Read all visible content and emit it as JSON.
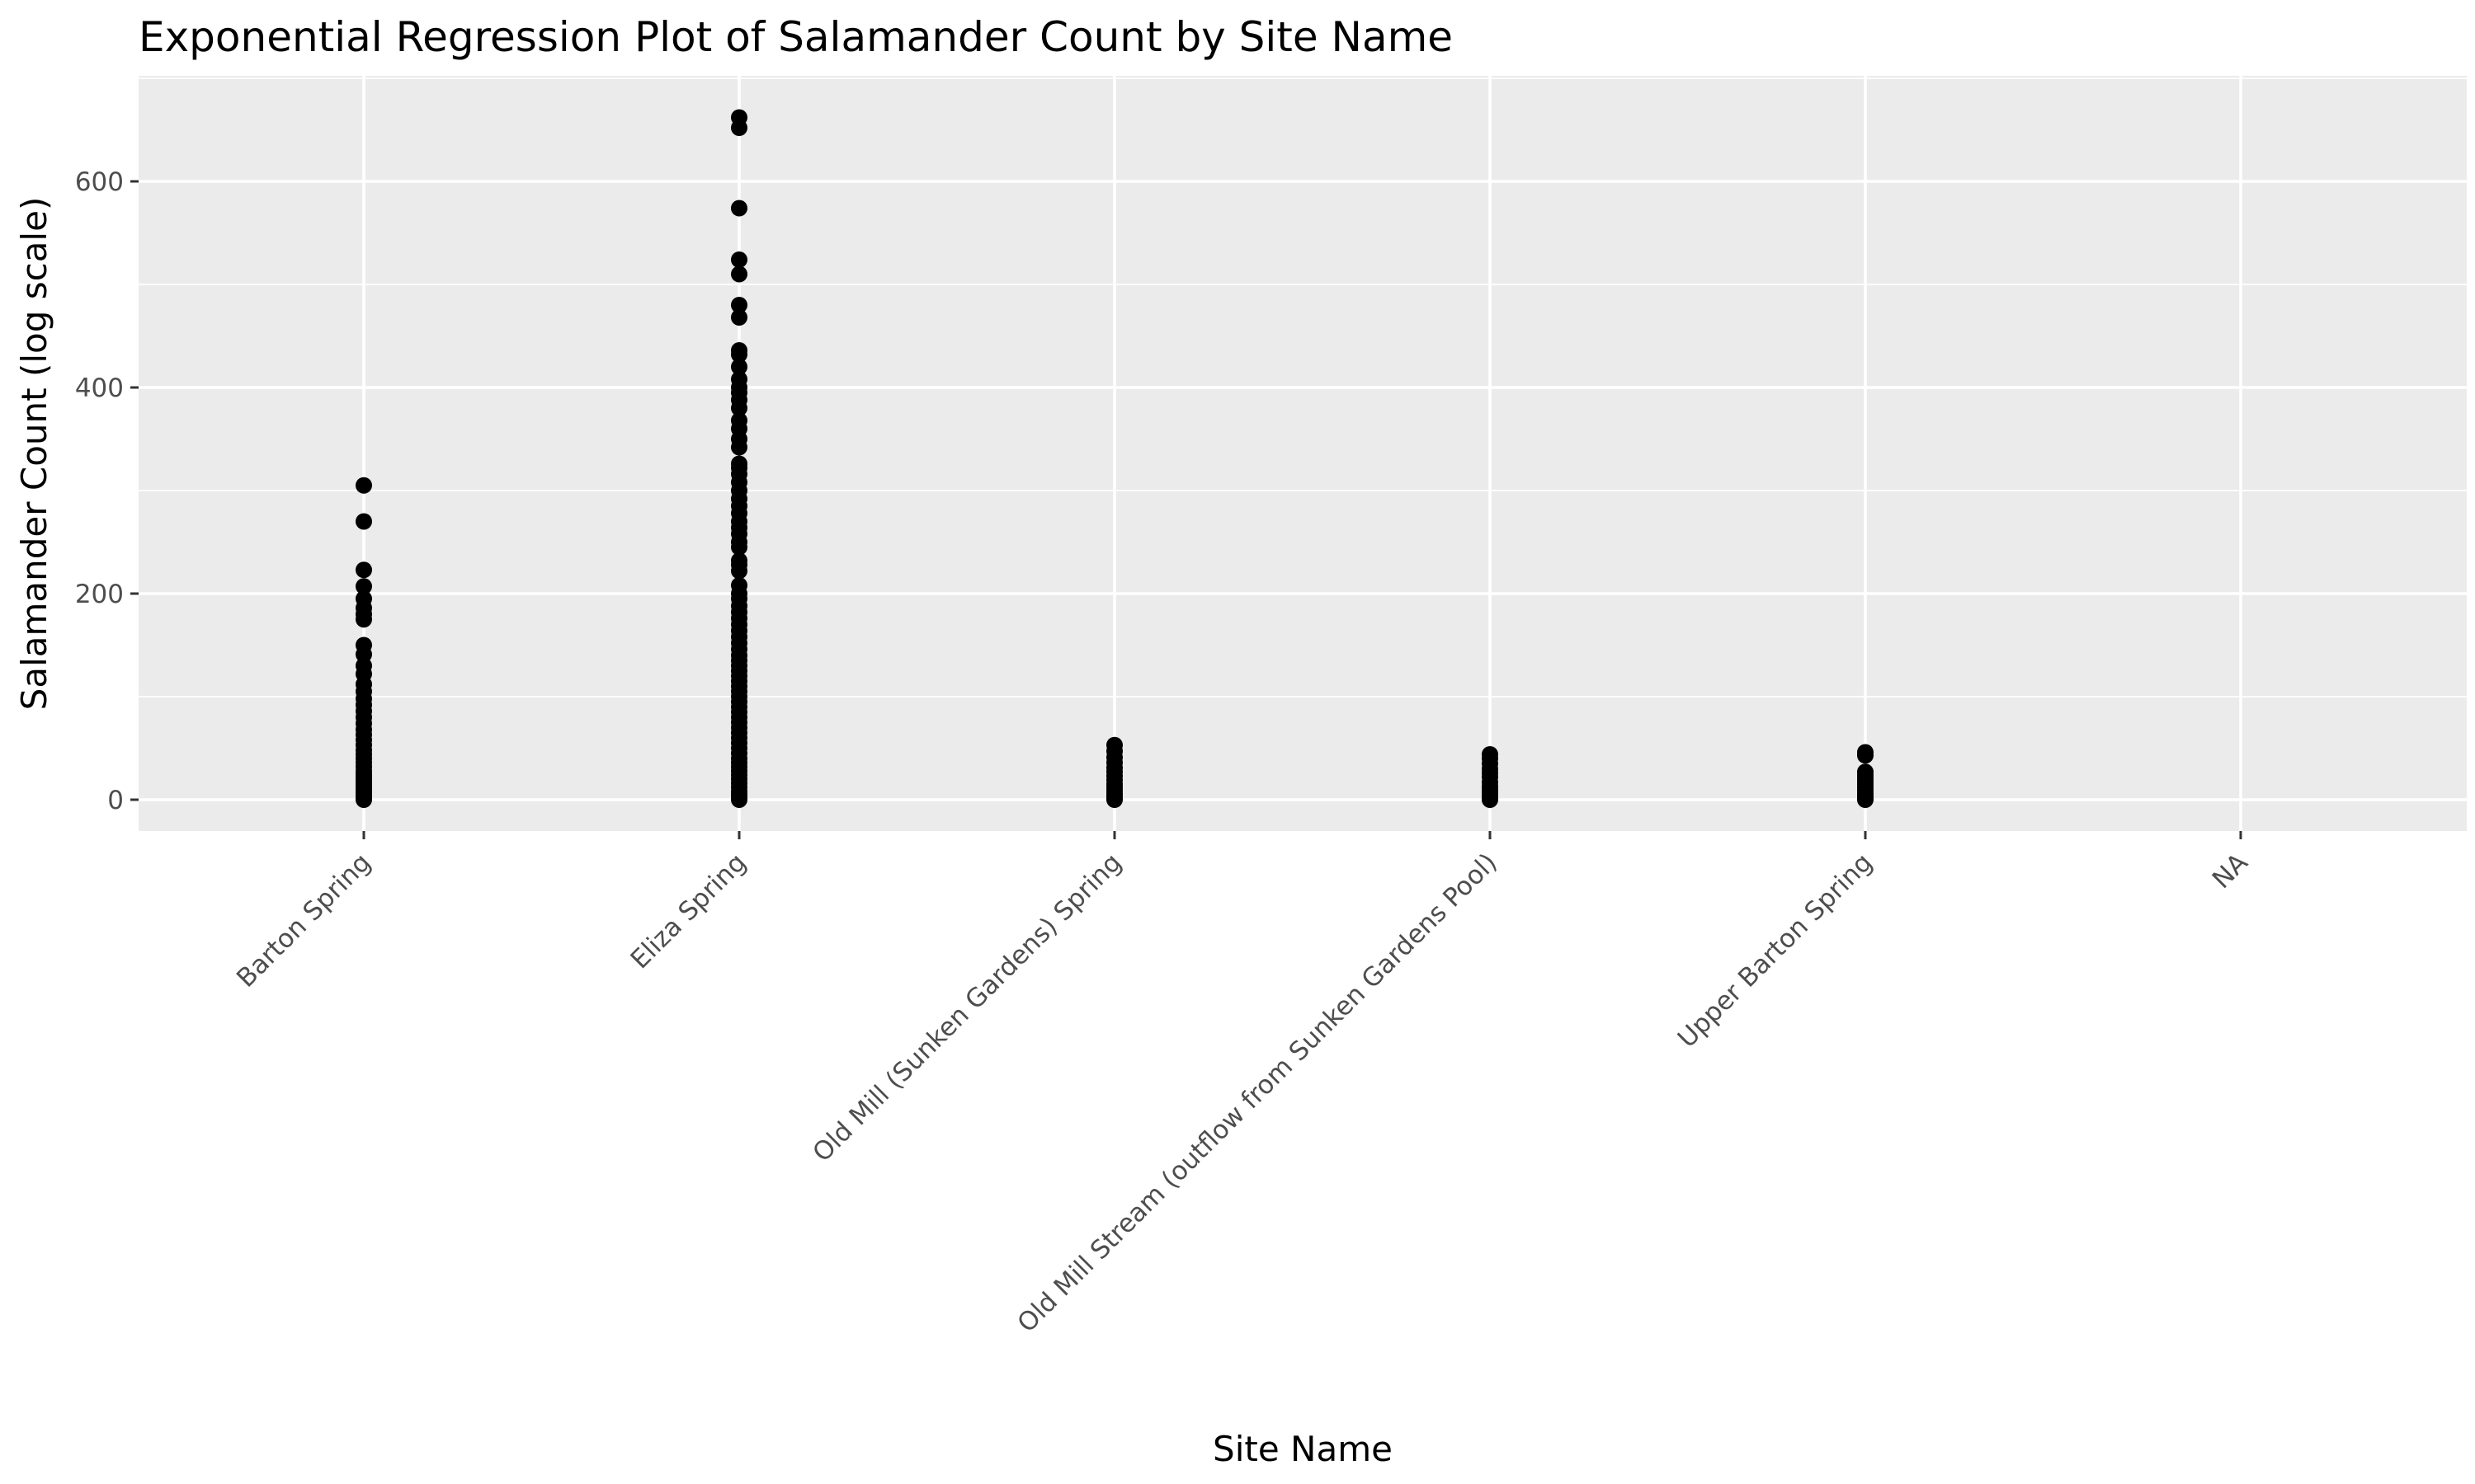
{
  "chart_data": {
    "type": "scatter",
    "title": "Exponential Regression Plot of Salamander Count by Site Name",
    "xlabel": "Site Name",
    "ylabel": "Salamander Count (log scale)",
    "categories": [
      "Barton Spring",
      "Eliza Spring",
      "Old Mill (Sunken Gardens) Spring",
      "Old Mill Stream (outflow from Sunken Gardens Pool)",
      "Upper Barton Spring",
      "NA"
    ],
    "ylim": [
      -33,
      670
    ],
    "yticks": [
      0,
      200,
      400,
      600
    ],
    "grid": true,
    "series": [
      {
        "points": [
          {
            "site": "Barton Spring",
            "values": [
              305,
              270,
              223,
              207,
              195,
              186,
              180,
              175,
              150,
              141,
              130,
              122,
              112,
              105,
              98,
              92,
              86,
              80,
              74,
              68,
              63,
              58,
              53,
              48,
              44,
              40,
              36,
              32,
              28,
              25,
              22,
              19,
              16,
              13,
              10,
              8,
              6,
              4,
              2,
              1,
              0
            ]
          },
          {
            "site": "Eliza Spring",
            "values": [
              662,
              652,
              574,
              524,
              510,
              480,
              468,
              436,
              432,
              420,
              408,
              400,
              395,
              388,
              380,
              368,
              360,
              350,
              342,
              326,
              322,
              316,
              308,
              300,
              292,
              285,
              278,
              270,
              264,
              258,
              250,
              245,
              232,
              228,
              222,
              208,
              200,
              195,
              188,
              182,
              176,
              170,
              164,
              158,
              152,
              146,
              140,
              135,
              130,
              125,
              120,
              115,
              110,
              105,
              100,
              95,
              90,
              85,
              80,
              75,
              70,
              65,
              60,
              55,
              50,
              45,
              40,
              36,
              32,
              28,
              24,
              20,
              16,
              12,
              8,
              5,
              2,
              0
            ]
          },
          {
            "site": "Old Mill (Sunken Gardens) Spring",
            "values": [
              53,
              47,
              41,
              36,
              31,
              27,
              23,
              19,
              15,
              12,
              9,
              6,
              4,
              2,
              0
            ]
          },
          {
            "site": "Old Mill Stream (outflow from Sunken Gardens Pool)",
            "values": [
              44,
              40,
              35,
              30,
              26,
              22,
              17,
              13,
              10,
              7,
              4,
              2,
              0
            ]
          },
          {
            "site": "Upper Barton Spring",
            "values": [
              46,
              43,
              27,
              24,
              21,
              18,
              15,
              12,
              9,
              6,
              4,
              2,
              0
            ]
          },
          {
            "site": "NA",
            "values": []
          }
        ]
      }
    ]
  }
}
